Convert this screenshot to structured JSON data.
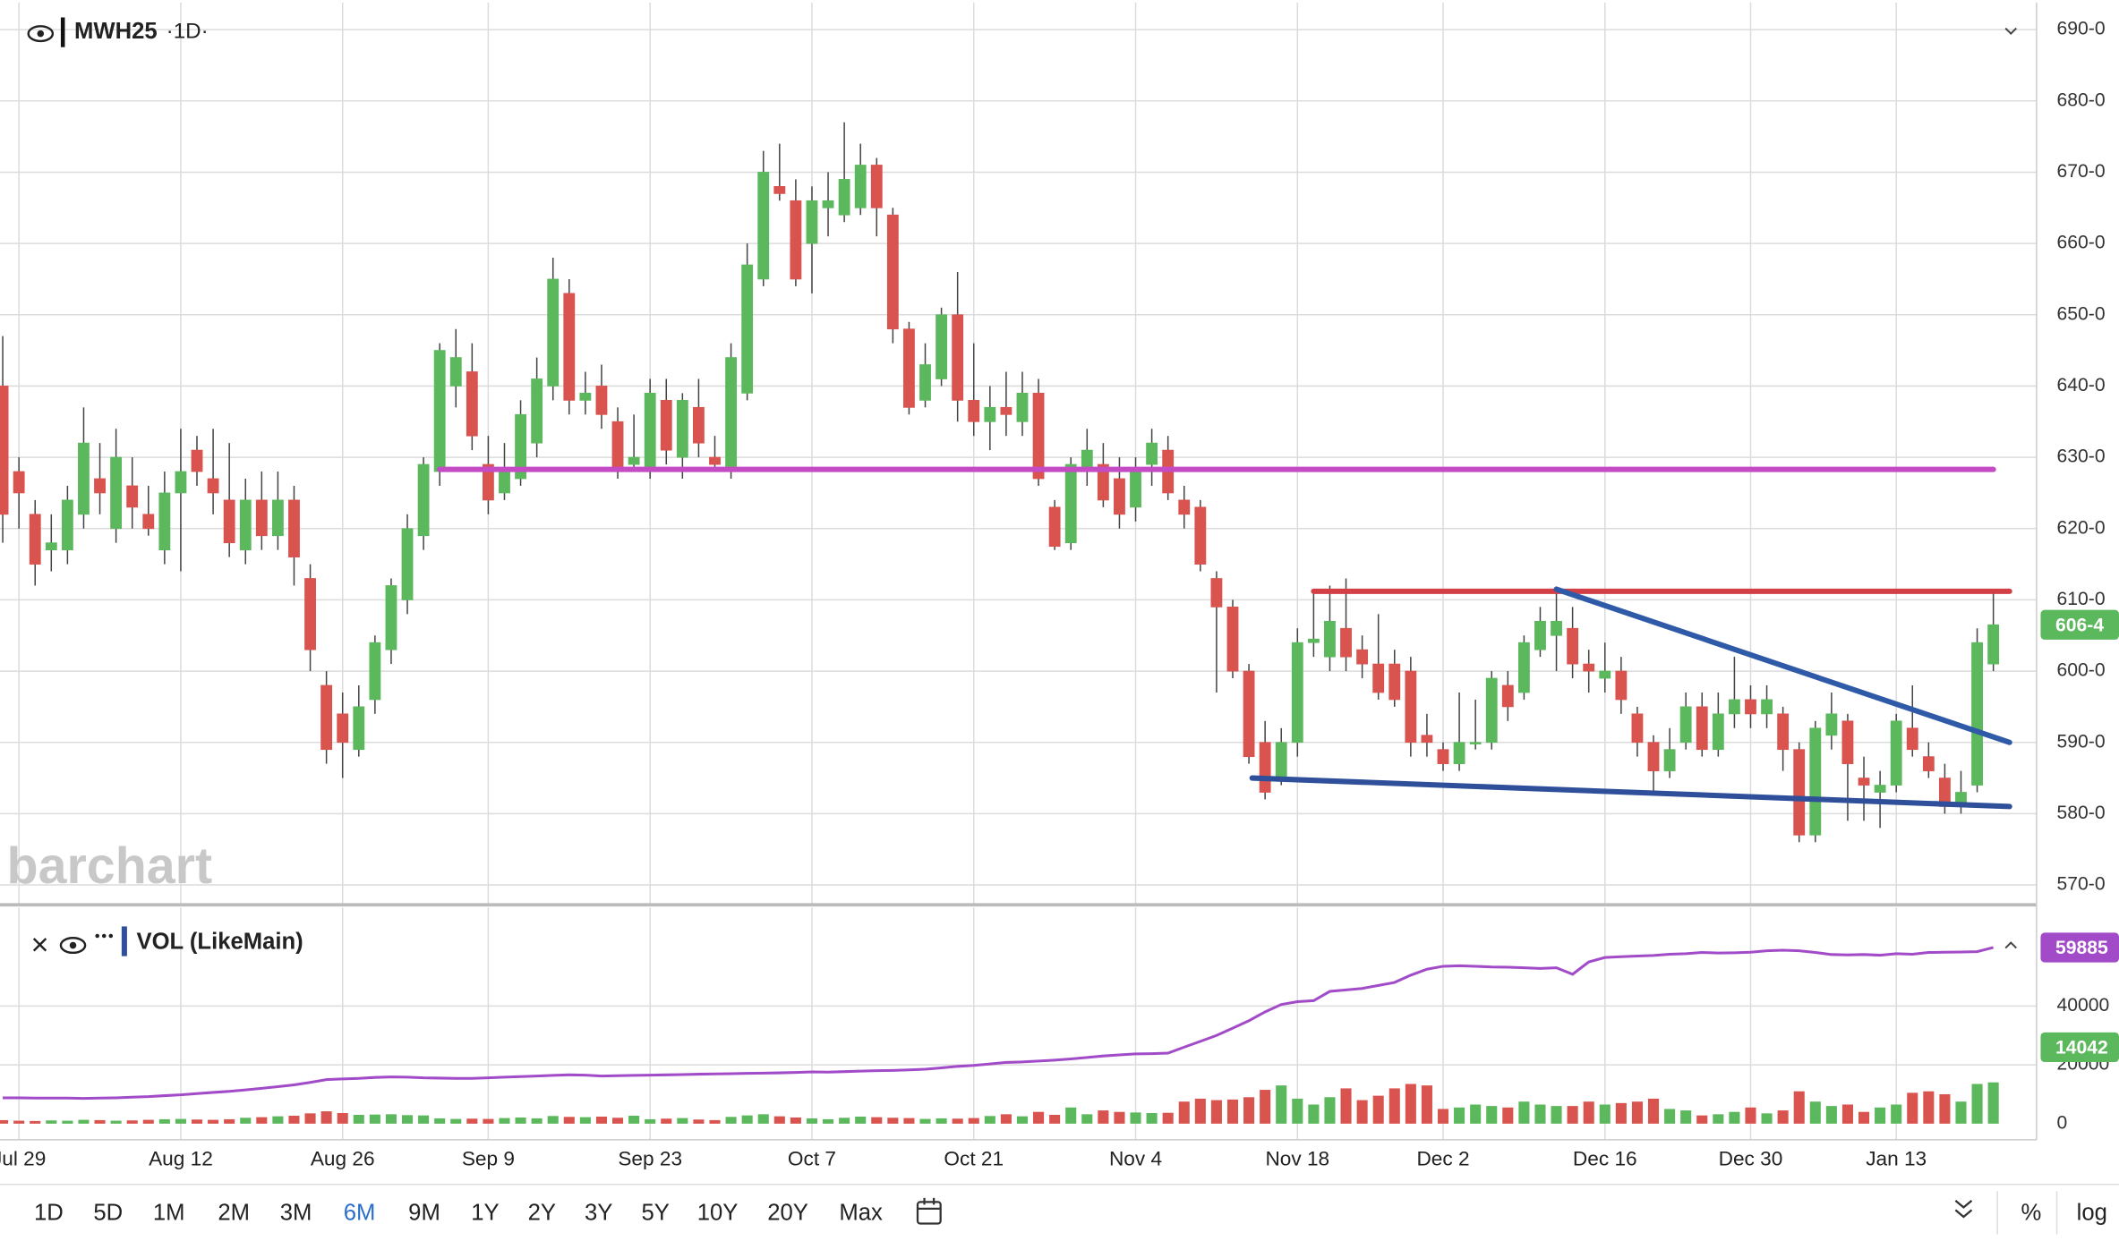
{
  "chart_data": [
    {
      "type": "candlestick",
      "title": "MWH25",
      "interval": "·1D·",
      "watermark": "barchart",
      "up_color": "#5cb85c",
      "down_color": "#d9534f",
      "xlim": [
        -0.17,
        125.67
      ],
      "ylim": [
        567.4,
        693.8
      ],
      "yticks": [
        {
          "value": 570,
          "label": "570-0"
        },
        {
          "value": 580,
          "label": "580-0"
        },
        {
          "value": 590,
          "label": "590-0"
        },
        {
          "value": 600,
          "label": "600-0"
        },
        {
          "value": 610,
          "label": "610-0"
        },
        {
          "value": 620,
          "label": "620-0"
        },
        {
          "value": 630,
          "label": "630-0"
        },
        {
          "value": 640,
          "label": "640-0"
        },
        {
          "value": 650,
          "label": "650-0"
        },
        {
          "value": 660,
          "label": "660-0"
        },
        {
          "value": 670,
          "label": "670-0"
        },
        {
          "value": 680,
          "label": "680-0"
        },
        {
          "value": 690,
          "label": "690-0"
        }
      ],
      "xticks": [
        {
          "value": 1,
          "label": "Jul 29"
        },
        {
          "value": 11,
          "label": "Aug 12"
        },
        {
          "value": 21,
          "label": "Aug 26"
        },
        {
          "value": 30,
          "label": "Sep 9"
        },
        {
          "value": 40,
          "label": "Sep 23"
        },
        {
          "value": 50,
          "label": "Oct 7"
        },
        {
          "value": 60,
          "label": "Oct 21"
        },
        {
          "value": 70,
          "label": "Nov 4"
        },
        {
          "value": 80,
          "label": "Nov 18"
        },
        {
          "value": 89,
          "label": "Dec 2"
        },
        {
          "value": 99,
          "label": "Dec 16"
        },
        {
          "value": 108,
          "label": "Dec 30"
        },
        {
          "value": 117,
          "label": "Jan 13"
        }
      ],
      "grid": true,
      "last_price": {
        "value": 606.5,
        "label": "606-4"
      },
      "ohlc": [
        [
          640,
          647,
          618,
          622
        ],
        [
          628,
          630,
          620,
          625
        ],
        [
          622,
          624,
          612,
          615
        ],
        [
          617,
          622,
          614,
          618
        ],
        [
          617,
          626,
          615,
          624
        ],
        [
          622,
          637,
          620,
          632
        ],
        [
          627,
          632,
          622,
          625
        ],
        [
          620,
          634,
          618,
          630
        ],
        [
          626,
          630,
          620,
          623
        ],
        [
          622,
          626,
          619,
          620
        ],
        [
          617,
          628,
          615,
          625
        ],
        [
          625,
          634,
          614,
          628
        ],
        [
          631,
          633,
          626,
          628
        ],
        [
          627,
          634,
          622,
          625
        ],
        [
          624,
          632,
          616,
          618
        ],
        [
          617,
          627,
          615,
          624
        ],
        [
          624,
          628,
          617,
          619
        ],
        [
          619,
          628,
          617,
          624
        ],
        [
          624,
          626,
          612,
          616
        ],
        [
          613,
          615,
          600,
          603
        ],
        [
          598,
          600,
          587,
          589
        ],
        [
          594,
          597,
          585,
          590
        ],
        [
          589,
          598,
          588,
          595
        ],
        [
          596,
          605,
          594,
          604
        ],
        [
          603,
          613,
          601,
          612
        ],
        [
          610,
          622,
          608,
          620
        ],
        [
          619,
          630,
          617,
          629
        ],
        [
          628,
          646,
          626,
          645
        ],
        [
          640,
          648,
          637,
          644
        ],
        [
          642,
          646,
          631,
          633
        ],
        [
          629,
          633,
          622,
          624
        ],
        [
          625,
          632,
          624,
          628
        ],
        [
          627,
          638,
          626,
          636
        ],
        [
          632,
          644,
          630,
          641
        ],
        [
          640,
          658,
          638,
          655
        ],
        [
          653,
          655,
          636,
          638
        ],
        [
          638,
          642,
          636,
          639
        ],
        [
          640,
          643,
          634,
          636
        ],
        [
          635,
          637,
          627,
          628
        ],
        [
          629,
          636,
          628,
          630
        ],
        [
          628,
          641,
          627,
          639
        ],
        [
          638,
          641,
          629,
          631
        ],
        [
          630,
          639,
          627,
          638
        ],
        [
          637,
          641,
          630,
          632
        ],
        [
          630,
          633,
          628,
          629
        ],
        [
          628,
          646,
          627,
          644
        ],
        [
          639,
          660,
          638,
          657
        ],
        [
          655,
          673,
          654,
          670
        ],
        [
          668,
          674,
          666,
          667
        ],
        [
          666,
          669,
          654,
          655
        ],
        [
          660,
          668,
          653,
          666
        ],
        [
          665,
          670,
          661,
          666
        ],
        [
          664,
          677,
          663,
          669
        ],
        [
          665,
          674,
          664,
          671
        ],
        [
          671,
          672,
          661,
          665
        ],
        [
          664,
          665,
          646,
          648
        ],
        [
          648,
          649,
          636,
          637
        ],
        [
          638,
          646,
          637,
          643
        ],
        [
          641,
          651,
          640,
          650
        ],
        [
          650,
          656,
          635,
          638
        ],
        [
          638,
          646,
          633,
          635
        ],
        [
          635,
          640,
          631,
          637
        ],
        [
          637,
          642,
          633,
          636
        ],
        [
          635,
          642,
          633,
          639
        ],
        [
          639,
          641,
          626,
          627
        ],
        [
          623,
          624,
          617,
          617.5
        ],
        [
          618,
          630,
          617,
          629
        ],
        [
          628,
          634,
          626,
          631
        ],
        [
          629,
          632,
          623,
          624
        ],
        [
          627,
          630,
          620,
          622
        ],
        [
          623,
          630,
          621,
          628
        ],
        [
          629,
          634,
          626,
          632
        ],
        [
          631,
          633,
          624,
          625
        ],
        [
          624,
          626,
          620,
          622
        ],
        [
          623,
          624,
          614,
          615
        ],
        [
          613,
          614,
          597,
          609
        ],
        [
          609,
          610,
          599,
          600
        ],
        [
          600,
          601,
          587,
          588
        ],
        [
          590,
          593,
          582,
          583
        ],
        [
          585,
          592,
          584,
          590
        ],
        [
          590,
          606,
          588,
          604
        ],
        [
          604,
          611,
          602,
          604.5
        ],
        [
          602,
          612,
          600,
          607
        ],
        [
          606,
          613,
          600,
          602
        ],
        [
          603,
          605,
          599,
          601
        ],
        [
          601,
          608,
          596,
          597
        ],
        [
          601,
          603,
          595,
          596
        ],
        [
          600,
          602,
          588,
          590
        ],
        [
          591,
          594,
          588,
          590
        ],
        [
          589,
          590,
          586,
          587
        ],
        [
          587,
          597,
          586,
          590
        ],
        [
          590,
          596,
          589,
          590
        ],
        [
          590,
          600,
          589,
          599
        ],
        [
          598,
          600,
          593,
          595
        ],
        [
          597,
          605,
          596,
          604
        ],
        [
          603,
          609,
          602,
          607
        ],
        [
          605,
          611,
          600,
          607
        ],
        [
          606,
          609,
          599,
          601
        ],
        [
          601,
          603,
          597,
          600
        ],
        [
          599,
          604,
          597,
          600
        ],
        [
          600,
          602,
          594,
          596
        ],
        [
          594,
          595,
          588,
          590
        ],
        [
          590,
          591,
          583,
          586
        ],
        [
          586,
          592,
          585,
          589
        ],
        [
          590,
          597,
          589,
          595
        ],
        [
          595,
          597,
          588,
          589
        ],
        [
          589,
          597,
          588,
          594
        ],
        [
          594,
          602,
          592,
          596
        ],
        [
          596,
          598,
          592,
          594
        ],
        [
          594,
          598,
          592,
          596
        ],
        [
          594,
          595,
          586,
          589
        ],
        [
          589,
          590,
          576,
          577
        ],
        [
          577,
          593,
          576,
          592
        ],
        [
          591,
          597,
          589,
          594
        ],
        [
          593,
          594,
          579,
          587
        ],
        [
          585,
          588,
          579,
          584
        ],
        [
          583,
          586,
          578,
          584
        ],
        [
          584,
          594,
          583,
          593
        ],
        [
          592,
          598,
          588,
          589
        ],
        [
          588,
          590,
          585,
          586
        ],
        [
          585,
          587,
          580,
          581
        ],
        [
          581,
          586,
          580,
          583
        ],
        [
          584,
          606,
          583,
          604
        ],
        [
          601,
          611,
          600,
          606.5
        ]
      ],
      "drawings": [
        {
          "color": "#c44bc4",
          "points": [
            [
              27,
              628.3
            ],
            [
              123,
              628.3
            ]
          ]
        },
        {
          "color": "#d23f45",
          "points": [
            [
              81,
              611.2
            ],
            [
              124,
              611.2
            ]
          ]
        },
        {
          "color": "#2f5aa8",
          "points": [
            [
              96,
              611.5
            ],
            [
              124,
              590
            ]
          ]
        },
        {
          "color": "#2f4f9a",
          "points": [
            [
              77.2,
              585
            ],
            [
              124,
              581
            ]
          ]
        }
      ]
    },
    {
      "type": "volume",
      "title": "VOL (LikeMain)",
      "xlim": [
        -0.17,
        125.67
      ],
      "ylim": [
        -5500,
        73500
      ],
      "yticks": [
        0,
        20000,
        40000
      ],
      "volume_up_color": "#5cb85c",
      "volume_down_color": "#d9534f",
      "line_color": "#a24bc8",
      "volume": [
        1200,
        1000,
        900,
        1100,
        1000,
        1300,
        1200,
        1000,
        1100,
        1300,
        1500,
        1600,
        1400,
        1300,
        1500,
        2000,
        2200,
        2500,
        2700,
        3500,
        4200,
        3600,
        3000,
        3100,
        3200,
        2900,
        2800,
        1800,
        1600,
        1700,
        1600,
        1900,
        2100,
        1800,
        2600,
        2300,
        2200,
        2400,
        2000,
        2700,
        1500,
        1700,
        1900,
        1400,
        1200,
        2300,
        2800,
        3200,
        2500,
        2100,
        1800,
        1500,
        2000,
        2400,
        2200,
        2000,
        1900,
        1600,
        1800,
        1700,
        1900,
        2600,
        3200,
        2500,
        4000,
        3000,
        5500,
        3200,
        4500,
        4000,
        3800,
        3600,
        3700,
        7500,
        8500,
        8000,
        8200,
        9000,
        11500,
        13000,
        8500,
        6500,
        9000,
        12000,
        8000,
        9500,
        12000,
        13500,
        13000,
        5000,
        5500,
        6500,
        6000,
        5500,
        7500,
        6500,
        6000,
        6000,
        7500,
        6500,
        7000,
        7500,
        8500,
        5000,
        4500,
        2800,
        3200,
        4000,
        5500,
        3500,
        4500,
        11000,
        7500,
        6000,
        6500,
        4000,
        5500,
        6500,
        10500,
        11000,
        10000,
        7500,
        13500,
        14042
      ],
      "open_interest": [
        8800,
        8800,
        8700,
        8700,
        8700,
        8600,
        8700,
        8800,
        9000,
        9200,
        9500,
        9800,
        10200,
        10600,
        11000,
        11500,
        12000,
        12600,
        13200,
        14000,
        15000,
        15200,
        15400,
        15700,
        15900,
        15800,
        15600,
        15500,
        15400,
        15400,
        15600,
        15800,
        16000,
        16200,
        16400,
        16600,
        16500,
        16200,
        16300,
        16400,
        16500,
        16600,
        16700,
        16800,
        16900,
        17000,
        17100,
        17200,
        17300,
        17400,
        17600,
        17500,
        17700,
        17900,
        18000,
        18100,
        18300,
        18500,
        19000,
        19500,
        19800,
        20300,
        20800,
        21000,
        21300,
        21600,
        22000,
        22500,
        23000,
        23400,
        23700,
        23800,
        24000,
        26000,
        28000,
        30000,
        32500,
        35000,
        38000,
        40500,
        41500,
        41800,
        45000,
        45500,
        46000,
        47000,
        48000,
        50500,
        52500,
        53500,
        53700,
        53500,
        53300,
        53200,
        53000,
        52800,
        53000,
        50800,
        55000,
        56500,
        56800,
        57000,
        57200,
        57600,
        57800,
        58200,
        58000,
        58100,
        58300,
        58800,
        59000,
        58800,
        58200,
        57500,
        57400,
        57500,
        57300,
        57800,
        57600,
        58200,
        58300,
        58400,
        58500,
        59885
      ]
    }
  ],
  "toolbar": {
    "ranges": [
      "1D",
      "5D",
      "1M",
      "2M",
      "3M",
      "6M",
      "9M",
      "1Y",
      "2Y",
      "3Y",
      "5Y",
      "10Y",
      "20Y",
      "Max"
    ],
    "selected": "6M",
    "percent": "%",
    "log": "log"
  }
}
